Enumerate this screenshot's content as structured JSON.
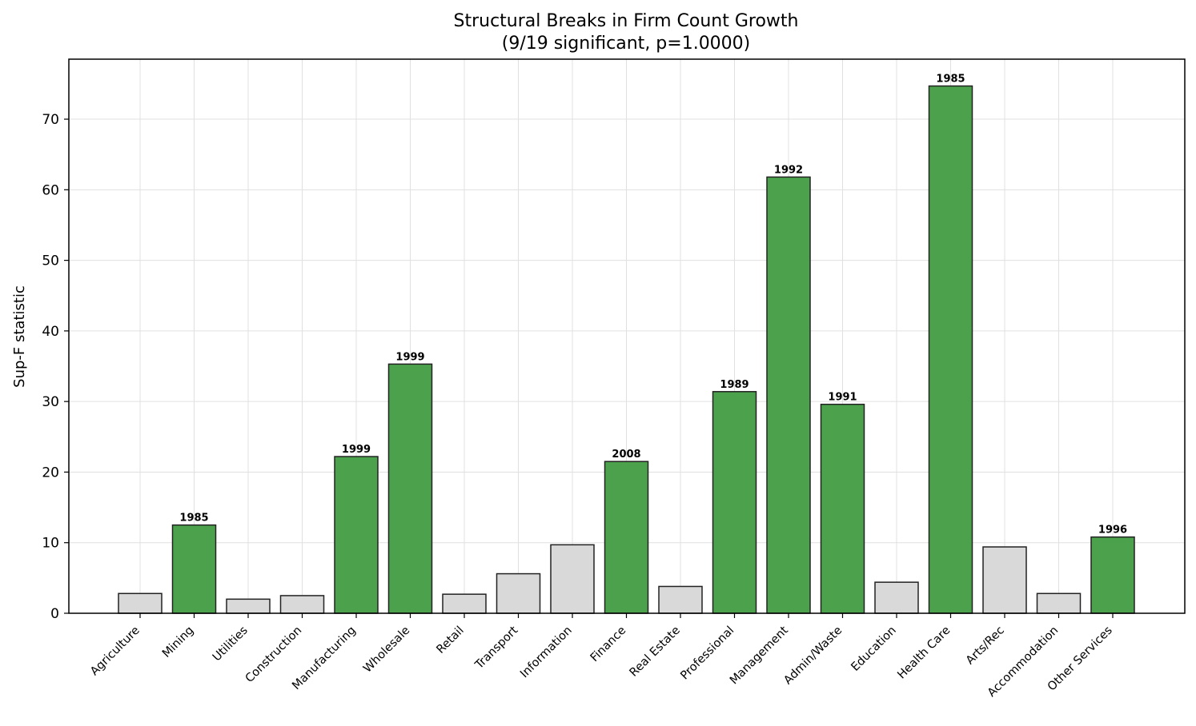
{
  "chart_data": {
    "type": "bar",
    "title": "Structural Breaks in Firm Count Growth",
    "subtitle": "(9/19 significant, p=1.0000)",
    "xlabel": "",
    "ylabel": "Sup-F statistic",
    "ylim": [
      0,
      78.5
    ],
    "yticks": [
      0,
      10,
      20,
      30,
      40,
      50,
      60,
      70
    ],
    "grid": true,
    "categories": [
      "Agriculture",
      "Mining",
      "Utilities",
      "Construction",
      "Manufacturing",
      "Wholesale",
      "Retail",
      "Transport",
      "Information",
      "Finance",
      "Real Estate",
      "Professional",
      "Management",
      "Admin/Waste",
      "Education",
      "Health Care",
      "Arts/Rec",
      "Accommodation",
      "Other Services"
    ],
    "values": [
      2.8,
      12.5,
      2.0,
      2.5,
      22.2,
      35.3,
      2.7,
      5.6,
      9.7,
      21.5,
      3.8,
      31.4,
      61.8,
      29.6,
      4.4,
      74.7,
      9.4,
      2.8,
      10.8
    ],
    "significant": [
      false,
      true,
      false,
      false,
      true,
      true,
      false,
      false,
      false,
      true,
      false,
      true,
      true,
      true,
      false,
      true,
      false,
      false,
      true
    ],
    "break_years": [
      "",
      "1985",
      "",
      "",
      "1999",
      "1999",
      "",
      "",
      "",
      "2008",
      "",
      "1989",
      "1992",
      "1991",
      "",
      "1985",
      "",
      "",
      "1996"
    ],
    "colors": {
      "significant": "#4ca24c",
      "not_significant": "#d9d9d9",
      "edge": "#222222",
      "grid": "#e0e0e0"
    }
  }
}
